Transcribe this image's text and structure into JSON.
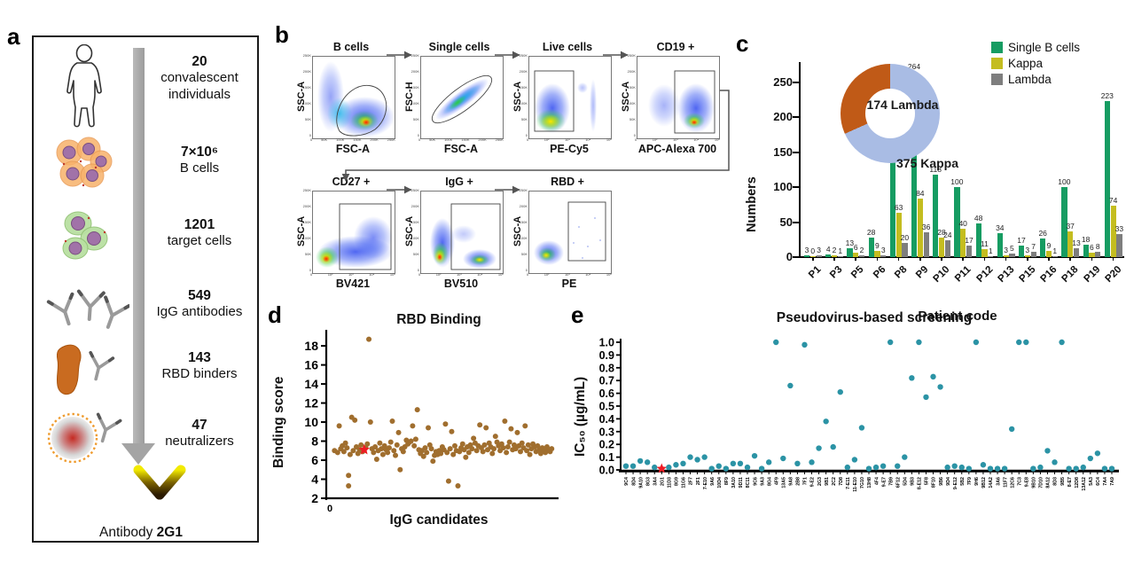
{
  "a": {
    "letter": "a",
    "steps": [
      {
        "icon": "human-icon",
        "number": "20",
        "lines": [
          "convalescent",
          "individuals"
        ]
      },
      {
        "icon": "b-cell-cluster-icon",
        "number": "7×10⁶",
        "lines": [
          "B cells"
        ]
      },
      {
        "icon": "target-cells-icon",
        "number": "1201",
        "lines": [
          "target cells"
        ]
      },
      {
        "icon": "igg-antibodies-icon",
        "number": "549",
        "lines": [
          "IgG antibodies"
        ]
      },
      {
        "icon": "rbd-binder-icon",
        "number": "143",
        "lines": [
          "RBD binders"
        ]
      },
      {
        "icon": "neutralizer-icon",
        "number": "47",
        "lines": [
          "neutralizers"
        ]
      }
    ],
    "footer": {
      "prefix": "Antibody ",
      "name": "2G1"
    }
  },
  "b": {
    "letter": "b",
    "plots": [
      {
        "title": "B cells",
        "ylabel": "SSC-A",
        "xlabel": "FSC-A",
        "xticks": [
          "0",
          "50K",
          "100K",
          "150K",
          "200K",
          "250K"
        ],
        "yticks": [
          "250K",
          "200K",
          "150K",
          "100K",
          "50K",
          "0"
        ]
      },
      {
        "title": "Single cells",
        "ylabel": "FSC-H",
        "xlabel": "FSC-A",
        "xticks": [
          "0",
          "50K",
          "100K",
          "150K",
          "200K",
          "250K"
        ],
        "yticks": [
          "250K",
          "200K",
          "150K",
          "100K",
          "50K",
          "0"
        ]
      },
      {
        "title": "Live cells",
        "ylabel": "SSC-A",
        "xlabel": "PE-Cy5",
        "xticks": [
          "0",
          "10²",
          "10³",
          "10⁴",
          "10⁵"
        ],
        "yticks": [
          "250K",
          "200K",
          "150K",
          "100K",
          "50K",
          "0"
        ]
      },
      {
        "title": "CD19 +",
        "ylabel": "SSC-A",
        "xlabel": "APC-Alexa 700",
        "xticks": [
          "0",
          "10²",
          "10³",
          "10⁴",
          "10⁵"
        ],
        "yticks": [
          "250K",
          "200K",
          "150K",
          "100K",
          "50K",
          "0"
        ]
      },
      {
        "title": "CD27 +",
        "ylabel": "SSC-A",
        "xlabel": "BV421",
        "xticks": [
          "0",
          "10²",
          "10³",
          "10⁴",
          "10⁵"
        ],
        "yticks": [
          "250K",
          "200K",
          "150K",
          "100K",
          "50K",
          "0"
        ]
      },
      {
        "title": "IgG +",
        "ylabel": "SSC-A",
        "xlabel": "BV510",
        "xticks": [
          "0",
          "10²",
          "10³",
          "10⁴",
          "10⁵"
        ],
        "yticks": [
          "250K",
          "200K",
          "150K",
          "100K",
          "50K",
          "0"
        ]
      },
      {
        "title": "RBD +",
        "ylabel": "SSC-A",
        "xlabel": "PE",
        "xticks": [
          "0",
          "10²",
          "10³",
          "10⁴",
          "10⁵"
        ],
        "yticks": [
          "250K",
          "200K",
          "150K",
          "100K",
          "50K",
          "0"
        ]
      }
    ]
  },
  "c": {
    "letter": "c",
    "ylabel": "Numbers",
    "xlabel": "Patient code",
    "legend": [
      {
        "label": "Single B cells"
      },
      {
        "label": "Kappa"
      },
      {
        "label": "Lambda"
      }
    ],
    "donut": {
      "lambda_label": "174 Lambda",
      "kappa_label": "375 Kappa"
    }
  },
  "d": {
    "letter": "d",
    "title": "RBD Binding",
    "ylabel": "Binding score",
    "xlabel": "IgG candidates",
    "origin_tick": "0"
  },
  "e": {
    "letter": "e",
    "title": "Pseudovirus-based screening",
    "ylabel": "IC₅₀ (µg/mL)"
  },
  "chart_data": [
    {
      "type": "bar",
      "id": "single-b-cells-per-patient",
      "xlabel": "Patient code",
      "ylabel": "Numbers",
      "categories": [
        "P1",
        "P3",
        "P5",
        "P6",
        "P8",
        "P9",
        "P10",
        "P11",
        "P12",
        "P13",
        "P15",
        "P16",
        "P18",
        "P19",
        "P20"
      ],
      "series": [
        {
          "name": "Single B cells",
          "color": "#169c62",
          "values": [
            3,
            4,
            13,
            28,
            204,
            264,
            118,
            100,
            48,
            34,
            17,
            26,
            100,
            18,
            223
          ]
        },
        {
          "name": "Kappa",
          "color": "#c4bd20",
          "values": [
            0,
            2,
            6,
            9,
            63,
            84,
            28,
            40,
            11,
            3,
            3,
            9,
            37,
            6,
            74
          ]
        },
        {
          "name": "Lambda",
          "color": "#7e7e7e",
          "values": [
            3,
            1,
            2,
            3,
            20,
            36,
            24,
            17,
            1,
            5,
            7,
            1,
            13,
            8,
            33
          ]
        }
      ],
      "ylim": [
        0,
        280
      ],
      "yticks": [
        0,
        50,
        100,
        150,
        200,
        250
      ],
      "legend_position": "top-right"
    },
    {
      "type": "pie",
      "id": "light-chain-donut",
      "donut": true,
      "labels": [
        "375 Kappa",
        "174 Lambda"
      ],
      "values": [
        375,
        174
      ],
      "colors": [
        "#a9bce4",
        "#c05a17"
      ]
    },
    {
      "type": "scatter",
      "id": "rbd-binding",
      "title": "RBD Binding",
      "xlabel": "IgG candidates",
      "ylabel": "Binding score",
      "xlim": [
        0,
        143
      ],
      "ylim": [
        2,
        19.5
      ],
      "yticks": [
        2,
        4,
        6,
        8,
        10,
        12,
        14,
        16,
        18
      ],
      "point_color": "#a06e2e",
      "highlight": {
        "x": 22,
        "y": 7.1,
        "color": "#ee1c24",
        "shape": "star",
        "label": "2G1"
      },
      "points": [
        [
          3,
          7.0
        ],
        [
          5,
          6.8
        ],
        [
          6,
          9.6
        ],
        [
          7,
          7.2
        ],
        [
          8,
          7.5
        ],
        [
          9,
          6.9
        ],
        [
          10,
          7.8
        ],
        [
          11,
          7.3
        ],
        [
          12,
          3.3
        ],
        [
          12,
          4.4
        ],
        [
          13,
          6.6
        ],
        [
          14,
          10.5
        ],
        [
          15,
          7.0
        ],
        [
          16,
          10.2
        ],
        [
          17,
          7.4
        ],
        [
          18,
          6.7
        ],
        [
          19,
          7.1
        ],
        [
          20,
          7.6
        ],
        [
          21,
          6.9
        ],
        [
          23,
          7.3
        ],
        [
          24,
          7.7
        ],
        [
          25,
          18.7
        ],
        [
          26,
          10.0
        ],
        [
          27,
          7.2
        ],
        [
          28,
          6.8
        ],
        [
          29,
          7.4
        ],
        [
          30,
          6.1
        ],
        [
          31,
          7.0
        ],
        [
          32,
          7.8
        ],
        [
          33,
          7.2
        ],
        [
          34,
          6.6
        ],
        [
          35,
          7.5
        ],
        [
          36,
          7.1
        ],
        [
          37,
          6.8
        ],
        [
          38,
          7.3
        ],
        [
          39,
          7.9
        ],
        [
          40,
          10.1
        ],
        [
          41,
          7.0
        ],
        [
          42,
          6.5
        ],
        [
          43,
          7.6
        ],
        [
          44,
          8.9
        ],
        [
          45,
          5.0
        ],
        [
          46,
          7.2
        ],
        [
          47,
          6.9
        ],
        [
          48,
          7.4
        ],
        [
          49,
          8.1
        ],
        [
          50,
          7.7
        ],
        [
          51,
          7.9
        ],
        [
          52,
          8.0
        ],
        [
          53,
          9.6
        ],
        [
          54,
          7.5
        ],
        [
          55,
          8.2
        ],
        [
          56,
          11.3
        ],
        [
          57,
          7.1
        ],
        [
          58,
          6.7
        ],
        [
          59,
          7.0
        ],
        [
          60,
          6.4
        ],
        [
          61,
          7.3
        ],
        [
          62,
          6.8
        ],
        [
          63,
          9.4
        ],
        [
          64,
          7.6
        ],
        [
          65,
          7.2
        ],
        [
          66,
          5.9
        ],
        [
          67,
          6.5
        ],
        [
          68,
          6.9
        ],
        [
          69,
          6.6
        ],
        [
          70,
          7.0
        ],
        [
          71,
          6.7
        ],
        [
          72,
          7.4
        ],
        [
          73,
          7.1
        ],
        [
          74,
          9.8
        ],
        [
          75,
          6.8
        ],
        [
          76,
          3.8
        ],
        [
          77,
          7.2
        ],
        [
          78,
          9.0
        ],
        [
          79,
          6.6
        ],
        [
          80,
          7.5
        ],
        [
          81,
          7.0
        ],
        [
          82,
          3.3
        ],
        [
          83,
          6.9
        ],
        [
          84,
          7.3
        ],
        [
          85,
          7.7
        ],
        [
          86,
          7.1
        ],
        [
          87,
          6.3
        ],
        [
          88,
          7.4
        ],
        [
          89,
          6.8
        ],
        [
          90,
          7.6
        ],
        [
          91,
          7.2
        ],
        [
          92,
          8.3
        ],
        [
          93,
          7.8
        ],
        [
          94,
          7.0
        ],
        [
          95,
          7.5
        ],
        [
          96,
          9.7
        ],
        [
          97,
          7.3
        ],
        [
          98,
          6.9
        ],
        [
          99,
          7.6
        ],
        [
          100,
          9.4
        ],
        [
          101,
          7.1
        ],
        [
          102,
          7.8
        ],
        [
          103,
          7.4
        ],
        [
          104,
          6.7
        ],
        [
          105,
          7.2
        ],
        [
          106,
          8.5
        ],
        [
          107,
          7.9
        ],
        [
          108,
          7.5
        ],
        [
          109,
          7.0
        ],
        [
          110,
          7.7
        ],
        [
          111,
          7.3
        ],
        [
          112,
          10.1
        ],
        [
          113,
          6.8
        ],
        [
          114,
          7.4
        ],
        [
          115,
          7.9
        ],
        [
          116,
          9.3
        ],
        [
          117,
          7.1
        ],
        [
          118,
          7.6
        ],
        [
          119,
          7.2
        ],
        [
          120,
          8.9
        ],
        [
          121,
          7.5
        ],
        [
          122,
          6.9
        ],
        [
          123,
          7.8
        ],
        [
          124,
          7.3
        ],
        [
          125,
          9.6
        ],
        [
          126,
          7.0
        ],
        [
          127,
          7.6
        ],
        [
          128,
          6.6
        ],
        [
          129,
          7.2
        ],
        [
          130,
          7.7
        ],
        [
          131,
          7.4
        ],
        [
          132,
          6.9
        ],
        [
          133,
          7.5
        ],
        [
          134,
          7.1
        ],
        [
          135,
          6.7
        ],
        [
          136,
          7.3
        ],
        [
          137,
          7.0
        ],
        [
          138,
          6.8
        ],
        [
          139,
          7.4
        ],
        [
          140,
          7.1
        ],
        [
          141,
          6.9
        ],
        [
          142,
          7.2
        ]
      ]
    },
    {
      "type": "scatter",
      "id": "pseudovirus-screening",
      "title": "Pseudovirus-based screening",
      "ylabel": "IC₅₀ (µg/mL)",
      "ylim": [
        0,
        1.0
      ],
      "yticks": [
        "0.0",
        "0.1",
        "0.2",
        "0.3",
        "0.4",
        "0.5",
        "0.6",
        "0.7",
        "0.8",
        "0.9",
        "1.0"
      ],
      "point_color": "#2b93a5",
      "highlight_index": 5,
      "highlight_color": "#ee1c24",
      "categories": [
        "9C4",
        "8D4",
        "9A10",
        "8G3",
        "3A4",
        "2G1",
        "11D3",
        "8G9",
        "11G6",
        "2F7",
        "2F1",
        "7-E10",
        "9A6",
        "10D4",
        "8F9",
        "3A10",
        "9D11",
        "8C11",
        "9C6",
        "9A3",
        "8G4",
        "4F9",
        "13A5",
        "9A8",
        "2B8",
        "7F1",
        "9-E2",
        "2G3",
        "9B1",
        "2C2",
        "7D8",
        "7-E11",
        "11-E10",
        "7G10",
        "13H8",
        "4F4",
        "9-E7",
        "7B9",
        "6F12",
        "5D4",
        "9B3",
        "8-E12",
        "5F8",
        "8F10",
        "9B6",
        "9D4",
        "9-E12",
        "5B2",
        "7F9",
        "9H6",
        "9B12",
        "14A2",
        "3A6",
        "11F7",
        "12C6",
        "7C3",
        "9-E8",
        "9B10",
        "7D10",
        "8A12",
        "8D3",
        "9B5",
        "8-E7",
        "12D8",
        "13A12",
        "5A3",
        "6C4",
        "7A4",
        "7A9"
      ],
      "values": [
        0.03,
        0.03,
        0.07,
        0.06,
        0.02,
        0.01,
        0.02,
        0.04,
        0.05,
        0.1,
        0.08,
        0.1,
        0.01,
        0.03,
        0.01,
        0.05,
        0.05,
        0.02,
        0.11,
        0.01,
        0.06,
        1.0,
        0.09,
        0.66,
        0.05,
        0.98,
        0.06,
        0.17,
        0.38,
        0.18,
        0.61,
        0.02,
        0.08,
        0.33,
        0.01,
        0.02,
        0.03,
        1.0,
        0.03,
        0.1,
        0.72,
        1.0,
        0.57,
        0.73,
        0.65,
        0.02,
        0.03,
        0.02,
        0.01,
        1.0,
        0.04,
        0.01,
        0.01,
        0.01,
        0.32,
        1.0,
        1.0,
        0.01,
        0.02,
        0.15,
        0.06,
        1.0,
        0.01,
        0.01,
        0.02,
        0.09,
        0.13,
        0.01,
        0.01
      ]
    }
  ]
}
